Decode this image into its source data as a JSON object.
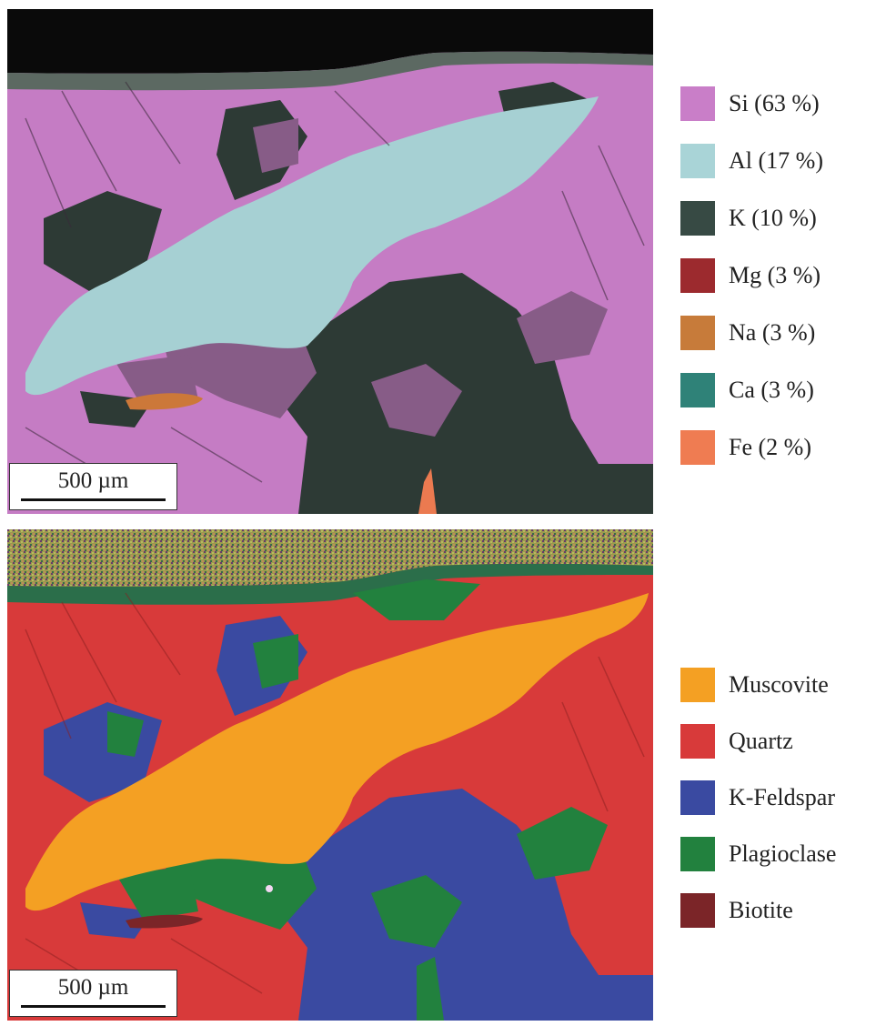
{
  "figure": {
    "top_panel": {
      "scalebar_label": "500 µm",
      "legend": [
        {
          "label": "Si (63 %)",
          "color": "#c97ec8"
        },
        {
          "label": "Al (17 %)",
          "color": "#a9d4d7"
        },
        {
          "label": "K (10 %)",
          "color": "#374a44"
        },
        {
          "label": "Mg (3 %)",
          "color": "#9c2a2e"
        },
        {
          "label": "Na (3 %)",
          "color": "#c77b3a"
        },
        {
          "label": "Ca (3 %)",
          "color": "#2f8278"
        },
        {
          "label": "Fe (2 %)",
          "color": "#ef7c52"
        }
      ]
    },
    "bottom_panel": {
      "scalebar_label": "500 µm",
      "legend": [
        {
          "label": "Muscovite",
          "color": "#f4a023"
        },
        {
          "label": "Quartz",
          "color": "#d83a3a"
        },
        {
          "label": "K-Feldspar",
          "color": "#3a4aa1"
        },
        {
          "label": "Plagioclase",
          "color": "#22813e"
        },
        {
          "label": "Biotite",
          "color": "#7b2528"
        }
      ]
    }
  }
}
